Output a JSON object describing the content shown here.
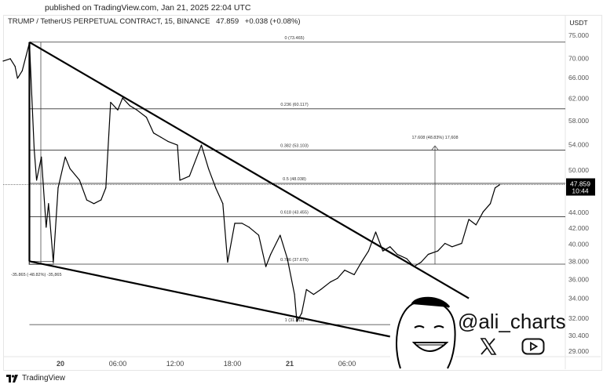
{
  "published": "published on TradingView.com, Jan 21, 2025 22:04 UTC",
  "header": {
    "symbol": "TRUMP / TetherUS PERPETUAL CONTRACT, 15, BINANCE",
    "price": "47.859",
    "change": "+0.038 (+0.08%)"
  },
  "currency": "USDT",
  "last_price_label": {
    "price": "47.859",
    "countdown": "10:44"
  },
  "footer": {
    "brand": "TradingView"
  },
  "watermark": {
    "handle": "@ali_charts",
    "icons": [
      "x-logo-icon",
      "youtube-icon"
    ]
  },
  "colors": {
    "line": "#000000",
    "background": "#ffffff",
    "price_tag": "#000000"
  },
  "chart_data": {
    "type": "line",
    "scale": "log",
    "ylim": [
      29,
      75
    ],
    "grid": false,
    "y_ticks": [
      "75.000",
      "70.000",
      "66.000",
      "62.000",
      "58.000",
      "54.000",
      "50.000",
      "44.000",
      "42.000",
      "40.000",
      "38.000",
      "36.000",
      "34.000",
      "32.000",
      "30.400",
      "29.000"
    ],
    "x_ticks": [
      {
        "label": "20",
        "time": "2025-01-20 00:00"
      },
      {
        "label": "06:00",
        "time": "2025-01-20 06:00"
      },
      {
        "label": "12:00",
        "time": "2025-01-20 12:00"
      },
      {
        "label": "18:00",
        "time": "2025-01-20 18:00"
      },
      {
        "label": "21",
        "time": "2025-01-21 00:00"
      },
      {
        "label": "06:00",
        "time": "2025-01-21 06:00"
      }
    ],
    "series": [
      {
        "x": [
          "2025-01-19 18:00",
          "2025-01-19 18:45",
          "2025-01-19 19:15",
          "2025-01-19 19:30",
          "2025-01-19 20:00",
          "2025-01-19 20:45",
          "2025-01-19 21:15",
          "2025-01-19 21:30",
          "2025-01-19 22:00",
          "2025-01-19 22:30",
          "2025-01-19 22:45",
          "2025-01-19 23:15",
          "2025-01-19 23:45",
          "2025-01-20 00:30",
          "2025-01-20 01:00",
          "2025-01-20 02:00",
          "2025-01-20 02:45",
          "2025-01-20 03:30",
          "2025-01-20 04:15",
          "2025-01-20 04:45",
          "2025-01-20 05:15",
          "2025-01-20 06:00",
          "2025-01-20 06:30",
          "2025-01-20 07:15",
          "2025-01-20 08:00",
          "2025-01-20 09:00",
          "2025-01-20 09:45",
          "2025-01-20 10:30",
          "2025-01-20 11:15",
          "2025-01-20 12:15",
          "2025-01-20 12:30",
          "2025-01-20 13:30",
          "2025-01-20 14:45",
          "2025-01-20 15:30",
          "2025-01-20 16:15",
          "2025-01-20 17:00",
          "2025-01-20 17:30",
          "2025-01-20 18:15",
          "2025-01-20 19:00",
          "2025-01-20 19:45",
          "2025-01-20 20:45",
          "2025-01-20 21:30",
          "2025-01-20 22:00",
          "2025-01-20 23:00",
          "2025-01-20 23:45",
          "2025-01-21 00:30",
          "2025-01-21 00:45",
          "2025-01-21 01:15",
          "2025-01-21 01:45",
          "2025-01-21 02:30",
          "2025-01-21 03:15",
          "2025-01-21 04:15",
          "2025-01-21 05:00",
          "2025-01-21 05:45",
          "2025-01-21 06:45",
          "2025-01-21 07:30",
          "2025-01-21 08:15",
          "2025-01-21 09:00",
          "2025-01-21 09:45",
          "2025-01-21 10:30",
          "2025-01-21 11:15",
          "2025-01-21 12:15",
          "2025-01-21 13:00",
          "2025-01-21 13:45",
          "2025-01-21 14:30",
          "2025-01-21 15:30",
          "2025-01-21 16:15",
          "2025-01-21 17:00",
          "2025-01-21 18:00",
          "2025-01-21 18:45",
          "2025-01-21 19:30",
          "2025-01-21 20:15",
          "2025-01-21 21:00",
          "2025-01-21 21:30",
          "2025-01-21 22:00"
        ],
        "y": [
          69.4,
          69.9,
          68.3,
          65.9,
          67.4,
          73.3,
          53.3,
          48.5,
          52.0,
          42.1,
          45.2,
          37.9,
          47.4,
          52.0,
          50.2,
          48.5,
          45.7,
          45.2,
          45.7,
          47.4,
          61.3,
          59.9,
          62.1,
          60.7,
          59.9,
          58.6,
          55.9,
          55.2,
          54.5,
          53.9,
          48.5,
          49.1,
          53.9,
          50.2,
          47.4,
          45.2,
          37.9,
          42.6,
          42.6,
          42.1,
          41.1,
          37.4,
          38.8,
          41.1,
          38.3,
          34.4,
          31.7,
          32.5,
          34.9,
          34.4,
          34.9,
          35.7,
          36.1,
          37.0,
          36.5,
          37.9,
          39.2,
          41.5,
          39.2,
          39.7,
          38.8,
          38.3,
          37.4,
          37.9,
          38.8,
          39.2,
          40.1,
          39.7,
          40.1,
          43.1,
          42.4,
          44.1,
          45.2,
          47.4,
          47.859
        ]
      }
    ],
    "fib_levels": [
      {
        "label": "0 (73.465)",
        "price": 73.465
      },
      {
        "label": "0.236 (60.117)",
        "price": 60.117
      },
      {
        "label": "0.382 (53.103)",
        "price": 53.103
      },
      {
        "label": "0.5 (48.038)",
        "price": 48.038
      },
      {
        "label": "0.618 (43.455)",
        "price": 43.455
      },
      {
        "label": "0.786 (37.675)",
        "price": 37.675
      },
      {
        "label": "1 (31.411)",
        "price": 31.411
      }
    ],
    "annotations": [
      {
        "text": "-35.865 (-48.82%) -35,865"
      },
      {
        "text": "17.608 (48.83%) 17,608"
      }
    ],
    "trendlines": [
      {
        "name": "",
        "from": [
          "2025-01-19 20:45",
          73.465
        ],
        "to": [
          "2025-01-21 18:45",
          34.0
        ]
      },
      {
        "name": "",
        "from": [
          "2025-01-19 20:45",
          38.0
        ],
        "to": [
          "2025-01-21 10:30",
          30.3
        ]
      }
    ]
  }
}
